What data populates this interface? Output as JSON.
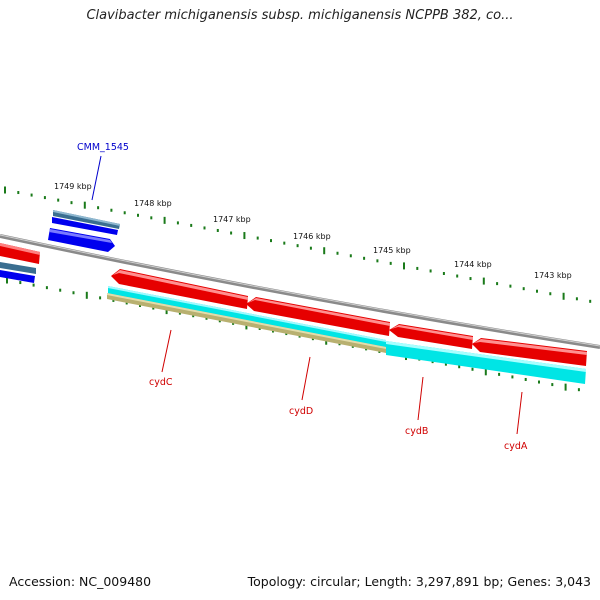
{
  "title": "Clavibacter michiganensis subsp. michiganensis NCPPB 382, co...",
  "footer": {
    "accession": "Accession: NC_009480",
    "topology": "Topology: circular; Length: 3,297,891 bp; Genes: 3,043"
  },
  "colors": {
    "backbone": "#8a8a8a",
    "reverse_gene": "#e60000",
    "forward_gene": "#0000ee",
    "cds_cyan": "#00e5e5",
    "cds_khaki": "#b8b070",
    "cds_steel": "#3a6e90",
    "tick": "#1a7a1a",
    "label_red": "#d00000",
    "label_blue": "#0000cc"
  },
  "ticks": [
    {
      "label": "1749 kbp"
    },
    {
      "label": "1748 kbp"
    },
    {
      "label": "1747 kbp"
    },
    {
      "label": "1746 kbp"
    },
    {
      "label": "1745 kbp"
    },
    {
      "label": "1744 kbp"
    },
    {
      "label": "1743 kbp"
    }
  ],
  "genes": [
    {
      "name": "CMM_1545",
      "strand": "forward",
      "color": "blue"
    },
    {
      "name": "cydC",
      "strand": "reverse",
      "color": "red"
    },
    {
      "name": "cydD",
      "strand": "reverse",
      "color": "red"
    },
    {
      "name": "cydB",
      "strand": "reverse",
      "color": "red"
    },
    {
      "name": "cydA",
      "strand": "reverse",
      "color": "red"
    }
  ]
}
